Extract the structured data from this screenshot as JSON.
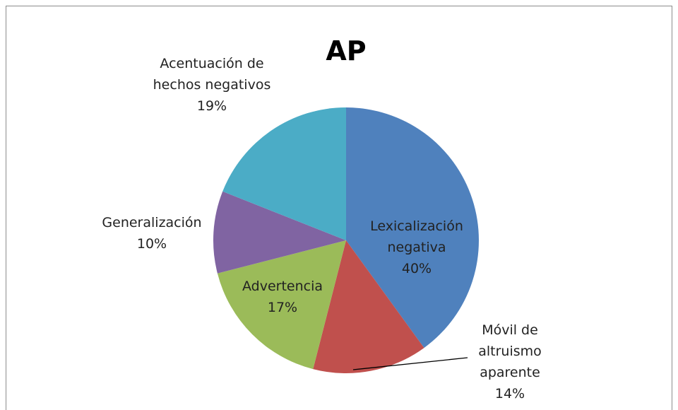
{
  "chart_data": {
    "type": "pie",
    "title": "AP",
    "categories": [
      "Lexicalización negativa",
      "Móvil de altruismo aparente",
      "Advertencia",
      "Generalización",
      "Acentuación de hechos negativos"
    ],
    "values": [
      40,
      14,
      17,
      10,
      19
    ],
    "value_labels": [
      "40%",
      "14%",
      "17%",
      "10%",
      "19%"
    ],
    "colors": [
      "#4f81bd",
      "#c0504d",
      "#9bbb59",
      "#8064a2",
      "#4bacc6"
    ]
  }
}
